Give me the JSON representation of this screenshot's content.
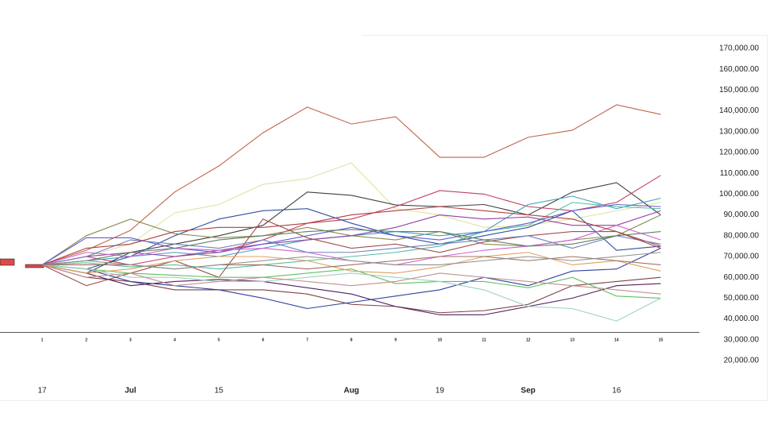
{
  "chart_data": {
    "type": "line",
    "categories": [
      "1",
      "2",
      "3",
      "4",
      "5",
      "6",
      "7",
      "8",
      "9",
      "10",
      "11",
      "12",
      "13",
      "14",
      "15"
    ],
    "date_labels": [
      "17",
      null,
      "Jul",
      null,
      "15",
      null,
      null,
      "Aug",
      null,
      "19",
      null,
      "Sep",
      null,
      "16",
      null
    ],
    "ylim": [
      20000,
      170000
    ],
    "yticks": [
      {
        "value": 20000,
        "label": "20,000.00"
      },
      {
        "value": 30000,
        "label": "30,000.00"
      },
      {
        "value": 40000,
        "label": "40,000.00"
      },
      {
        "value": 50000,
        "label": "50,000.00"
      },
      {
        "value": 60000,
        "label": "60,000.00"
      },
      {
        "value": 70000,
        "label": "70,000.00"
      },
      {
        "value": 80000,
        "label": "80,000.00"
      },
      {
        "value": 90000,
        "label": "90,000.00"
      },
      {
        "value": 100000,
        "label": "100,000.00"
      },
      {
        "value": 110000,
        "label": "110,000.00"
      },
      {
        "value": 120000,
        "label": "120,000.00"
      },
      {
        "value": 130000,
        "label": "130,000.00"
      },
      {
        "value": 140000,
        "label": "140,000.00"
      },
      {
        "value": 150000,
        "label": "150,000.00"
      },
      {
        "value": 160000,
        "label": "160,000.00"
      },
      {
        "value": 170000,
        "label": "170,000.00"
      }
    ],
    "grid": false,
    "history_bars": {
      "color": "#e04848",
      "open": [
        68850,
        66180
      ],
      "close": [
        65800,
        64660
      ]
    },
    "series": [
      {
        "color": "#c0654a",
        "values": [
          66000,
          73000,
          82600,
          101000,
          113500,
          129500,
          141800,
          133700,
          137200,
          117700,
          117700,
          127300,
          130700,
          142900,
          138300
        ]
      },
      {
        "color": "#e2e2a4",
        "values": [
          66000,
          70000,
          76000,
          91000,
          95000,
          104700,
          107400,
          115000,
          93000,
          90000,
          84000,
          85000,
          88000,
          92000,
          96000
        ]
      },
      {
        "color": "#404040",
        "values": [
          66000,
          62000,
          72000,
          76000,
          80000,
          85000,
          101000,
          99400,
          94800,
          94000,
          95000,
          90000,
          101000,
          105500,
          90000
        ]
      },
      {
        "color": "#c04060",
        "values": [
          66000,
          70000,
          66000,
          70000,
          72000,
          78000,
          86000,
          88000,
          94000,
          101700,
          100000,
          94000,
          92000,
          96000,
          109000
        ]
      },
      {
        "color": "#3050a0",
        "values": [
          66000,
          64000,
          70000,
          80000,
          88000,
          92000,
          93000,
          86000,
          80000,
          76000,
          80000,
          84000,
          92000,
          73000,
          75000
        ]
      },
      {
        "color": "#8a8a50",
        "values": [
          66000,
          80000,
          88000,
          81000,
          79000,
          80000,
          84000,
          80000,
          78000,
          82000,
          76000,
          75000,
          78000,
          80000,
          90000
        ]
      },
      {
        "color": "#40a0c0",
        "values": [
          66000,
          68000,
          70000,
          72000,
          70000,
          74000,
          78000,
          80000,
          82000,
          80000,
          82000,
          95000,
          99000,
          93000,
          98000
        ]
      },
      {
        "color": "#50c0a0",
        "values": [
          66000,
          67000,
          65000,
          66000,
          64000,
          66000,
          68000,
          70000,
          72000,
          75000,
          82000,
          85000,
          96000,
          94000,
          93000
        ]
      },
      {
        "color": "#9040a0",
        "values": [
          66000,
          70000,
          72000,
          70000,
          73000,
          76000,
          78000,
          80000,
          84000,
          90000,
          88000,
          89000,
          85000,
          85000,
          92000
        ]
      },
      {
        "color": "#6060d0",
        "values": [
          66000,
          79000,
          79000,
          74000,
          72000,
          76000,
          80000,
          84000,
          80000,
          78000,
          82000,
          86000,
          92000,
          95000,
          94000
        ]
      },
      {
        "color": "#a05050",
        "values": [
          66000,
          56000,
          62000,
          68000,
          60000,
          88000,
          79000,
          74000,
          76000,
          72000,
          77000,
          80000,
          82000,
          82000,
          75000
        ]
      },
      {
        "color": "#804040",
        "values": [
          66000,
          60000,
          58000,
          54000,
          54000,
          54000,
          52000,
          47000,
          46000,
          43000,
          44000,
          47000,
          56000,
          58000,
          60000
        ]
      },
      {
        "color": "#502060",
        "values": [
          66000,
          62000,
          56000,
          58000,
          59000,
          58000,
          55000,
          52000,
          46000,
          42000,
          42000,
          46000,
          50000,
          56000,
          57000
        ]
      },
      {
        "color": "#3040a0",
        "values": [
          66000,
          64000,
          58000,
          56000,
          54000,
          50000,
          45000,
          48000,
          51000,
          54000,
          60000,
          56000,
          63000,
          64000,
          74000
        ]
      },
      {
        "color": "#60c060",
        "values": [
          66000,
          64000,
          62000,
          61000,
          60000,
          60000,
          62000,
          64000,
          57000,
          58000,
          58000,
          55000,
          60000,
          51000,
          50000
        ]
      },
      {
        "color": "#a0d0c0",
        "values": [
          66000,
          64000,
          60000,
          60000,
          58000,
          58000,
          60000,
          62000,
          60000,
          58000,
          54000,
          46000,
          45000,
          39000,
          50000
        ]
      },
      {
        "color": "#d060d0",
        "values": [
          66000,
          72000,
          70000,
          74000,
          73000,
          74000,
          72000,
          68000,
          66000,
          70000,
          73000,
          75000,
          78000,
          85000,
          78000
        ]
      },
      {
        "color": "#e0a060",
        "values": [
          66000,
          62000,
          64000,
          68000,
          70000,
          70000,
          68000,
          63000,
          62000,
          65000,
          70000,
          72000,
          66000,
          68000,
          63000
        ]
      },
      {
        "color": "#7080c0",
        "values": [
          66000,
          70000,
          78000,
          76000,
          74000,
          78000,
          72000,
          72000,
          74000,
          76000,
          78000,
          80000,
          74000,
          80000,
          76000
        ]
      },
      {
        "color": "#a07060",
        "values": [
          66000,
          66000,
          66000,
          64000,
          66000,
          66000,
          64000,
          66000,
          68000,
          70000,
          70000,
          68000,
          70000,
          68000,
          66000
        ]
      },
      {
        "color": "#608060",
        "values": [
          66000,
          68000,
          72000,
          74000,
          78000,
          80000,
          82000,
          83000,
          82000,
          82000,
          78000,
          75000,
          76000,
          80000,
          82000
        ]
      },
      {
        "color": "#c09090",
        "values": [
          66000,
          60000,
          62000,
          56000,
          58000,
          60000,
          58000,
          56000,
          58000,
          62000,
          60000,
          58000,
          56000,
          54000,
          52000
        ]
      },
      {
        "color": "#b04040",
        "values": [
          66000,
          74000,
          76000,
          82000,
          84000,
          84000,
          86000,
          90000,
          92000,
          94000,
          92000,
          90000,
          88000,
          82000,
          74000
        ]
      },
      {
        "color": "#909090",
        "values": [
          66000,
          68000,
          66000,
          64000,
          66000,
          68000,
          70000,
          68000,
          66000,
          66000,
          68000,
          70000,
          68000,
          70000,
          72000
        ]
      }
    ]
  }
}
